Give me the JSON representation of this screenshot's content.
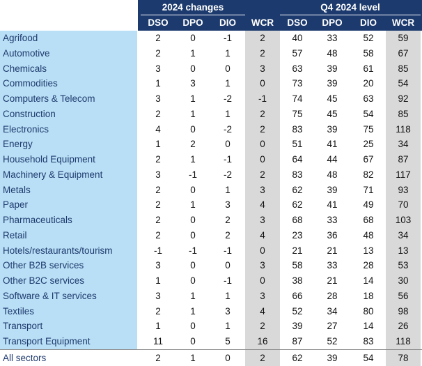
{
  "table": {
    "group_headers": [
      "2024 changes",
      "Q4 2024 level"
    ],
    "columns": [
      "DSO",
      "DPO",
      "DIO",
      "WCR",
      "DSO",
      "DPO",
      "DIO",
      "WCR"
    ],
    "rows": [
      [
        "Agrifood",
        2,
        0,
        -1,
        2,
        40,
        33,
        52,
        59
      ],
      [
        "Automotive",
        2,
        1,
        1,
        2,
        57,
        48,
        58,
        67
      ],
      [
        "Chemicals",
        3,
        0,
        0,
        3,
        63,
        39,
        61,
        85
      ],
      [
        "Commodities",
        1,
        3,
        1,
        0,
        73,
        39,
        20,
        54
      ],
      [
        "Computers & Telecom",
        3,
        1,
        -2,
        -1,
        74,
        45,
        63,
        92
      ],
      [
        "Construction",
        2,
        1,
        1,
        2,
        75,
        45,
        54,
        85
      ],
      [
        "Electronics",
        4,
        0,
        -2,
        2,
        83,
        39,
        75,
        118
      ],
      [
        "Energy",
        1,
        2,
        0,
        0,
        51,
        41,
        25,
        34
      ],
      [
        "Household Equipment",
        2,
        1,
        -1,
        0,
        64,
        44,
        67,
        87
      ],
      [
        "Machinery & Equipment",
        3,
        -1,
        -2,
        2,
        83,
        48,
        82,
        117
      ],
      [
        "Metals",
        2,
        0,
        1,
        3,
        62,
        39,
        71,
        93
      ],
      [
        "Paper",
        2,
        1,
        3,
        4,
        62,
        41,
        49,
        70
      ],
      [
        "Pharmaceuticals",
        2,
        0,
        2,
        3,
        68,
        33,
        68,
        103
      ],
      [
        "Retail",
        2,
        0,
        2,
        4,
        23,
        36,
        48,
        34
      ],
      [
        "Hotels/restaurants/tourism",
        -1,
        -1,
        -1,
        0,
        21,
        21,
        13,
        13
      ],
      [
        "Other B2B services",
        3,
        0,
        0,
        3,
        58,
        33,
        28,
        53
      ],
      [
        "Other B2C services",
        1,
        0,
        -1,
        0,
        38,
        21,
        14,
        30
      ],
      [
        "Software & IT services",
        3,
        1,
        1,
        3,
        66,
        28,
        18,
        56
      ],
      [
        "Textiles",
        2,
        1,
        3,
        4,
        52,
        34,
        80,
        98
      ],
      [
        "Transport",
        1,
        0,
        1,
        2,
        39,
        27,
        14,
        26
      ],
      [
        "Transport Equipment",
        11,
        0,
        5,
        16,
        87,
        52,
        83,
        118
      ]
    ],
    "total": [
      "All sectors",
      2,
      1,
      0,
      2,
      62,
      39,
      54,
      78
    ]
  }
}
